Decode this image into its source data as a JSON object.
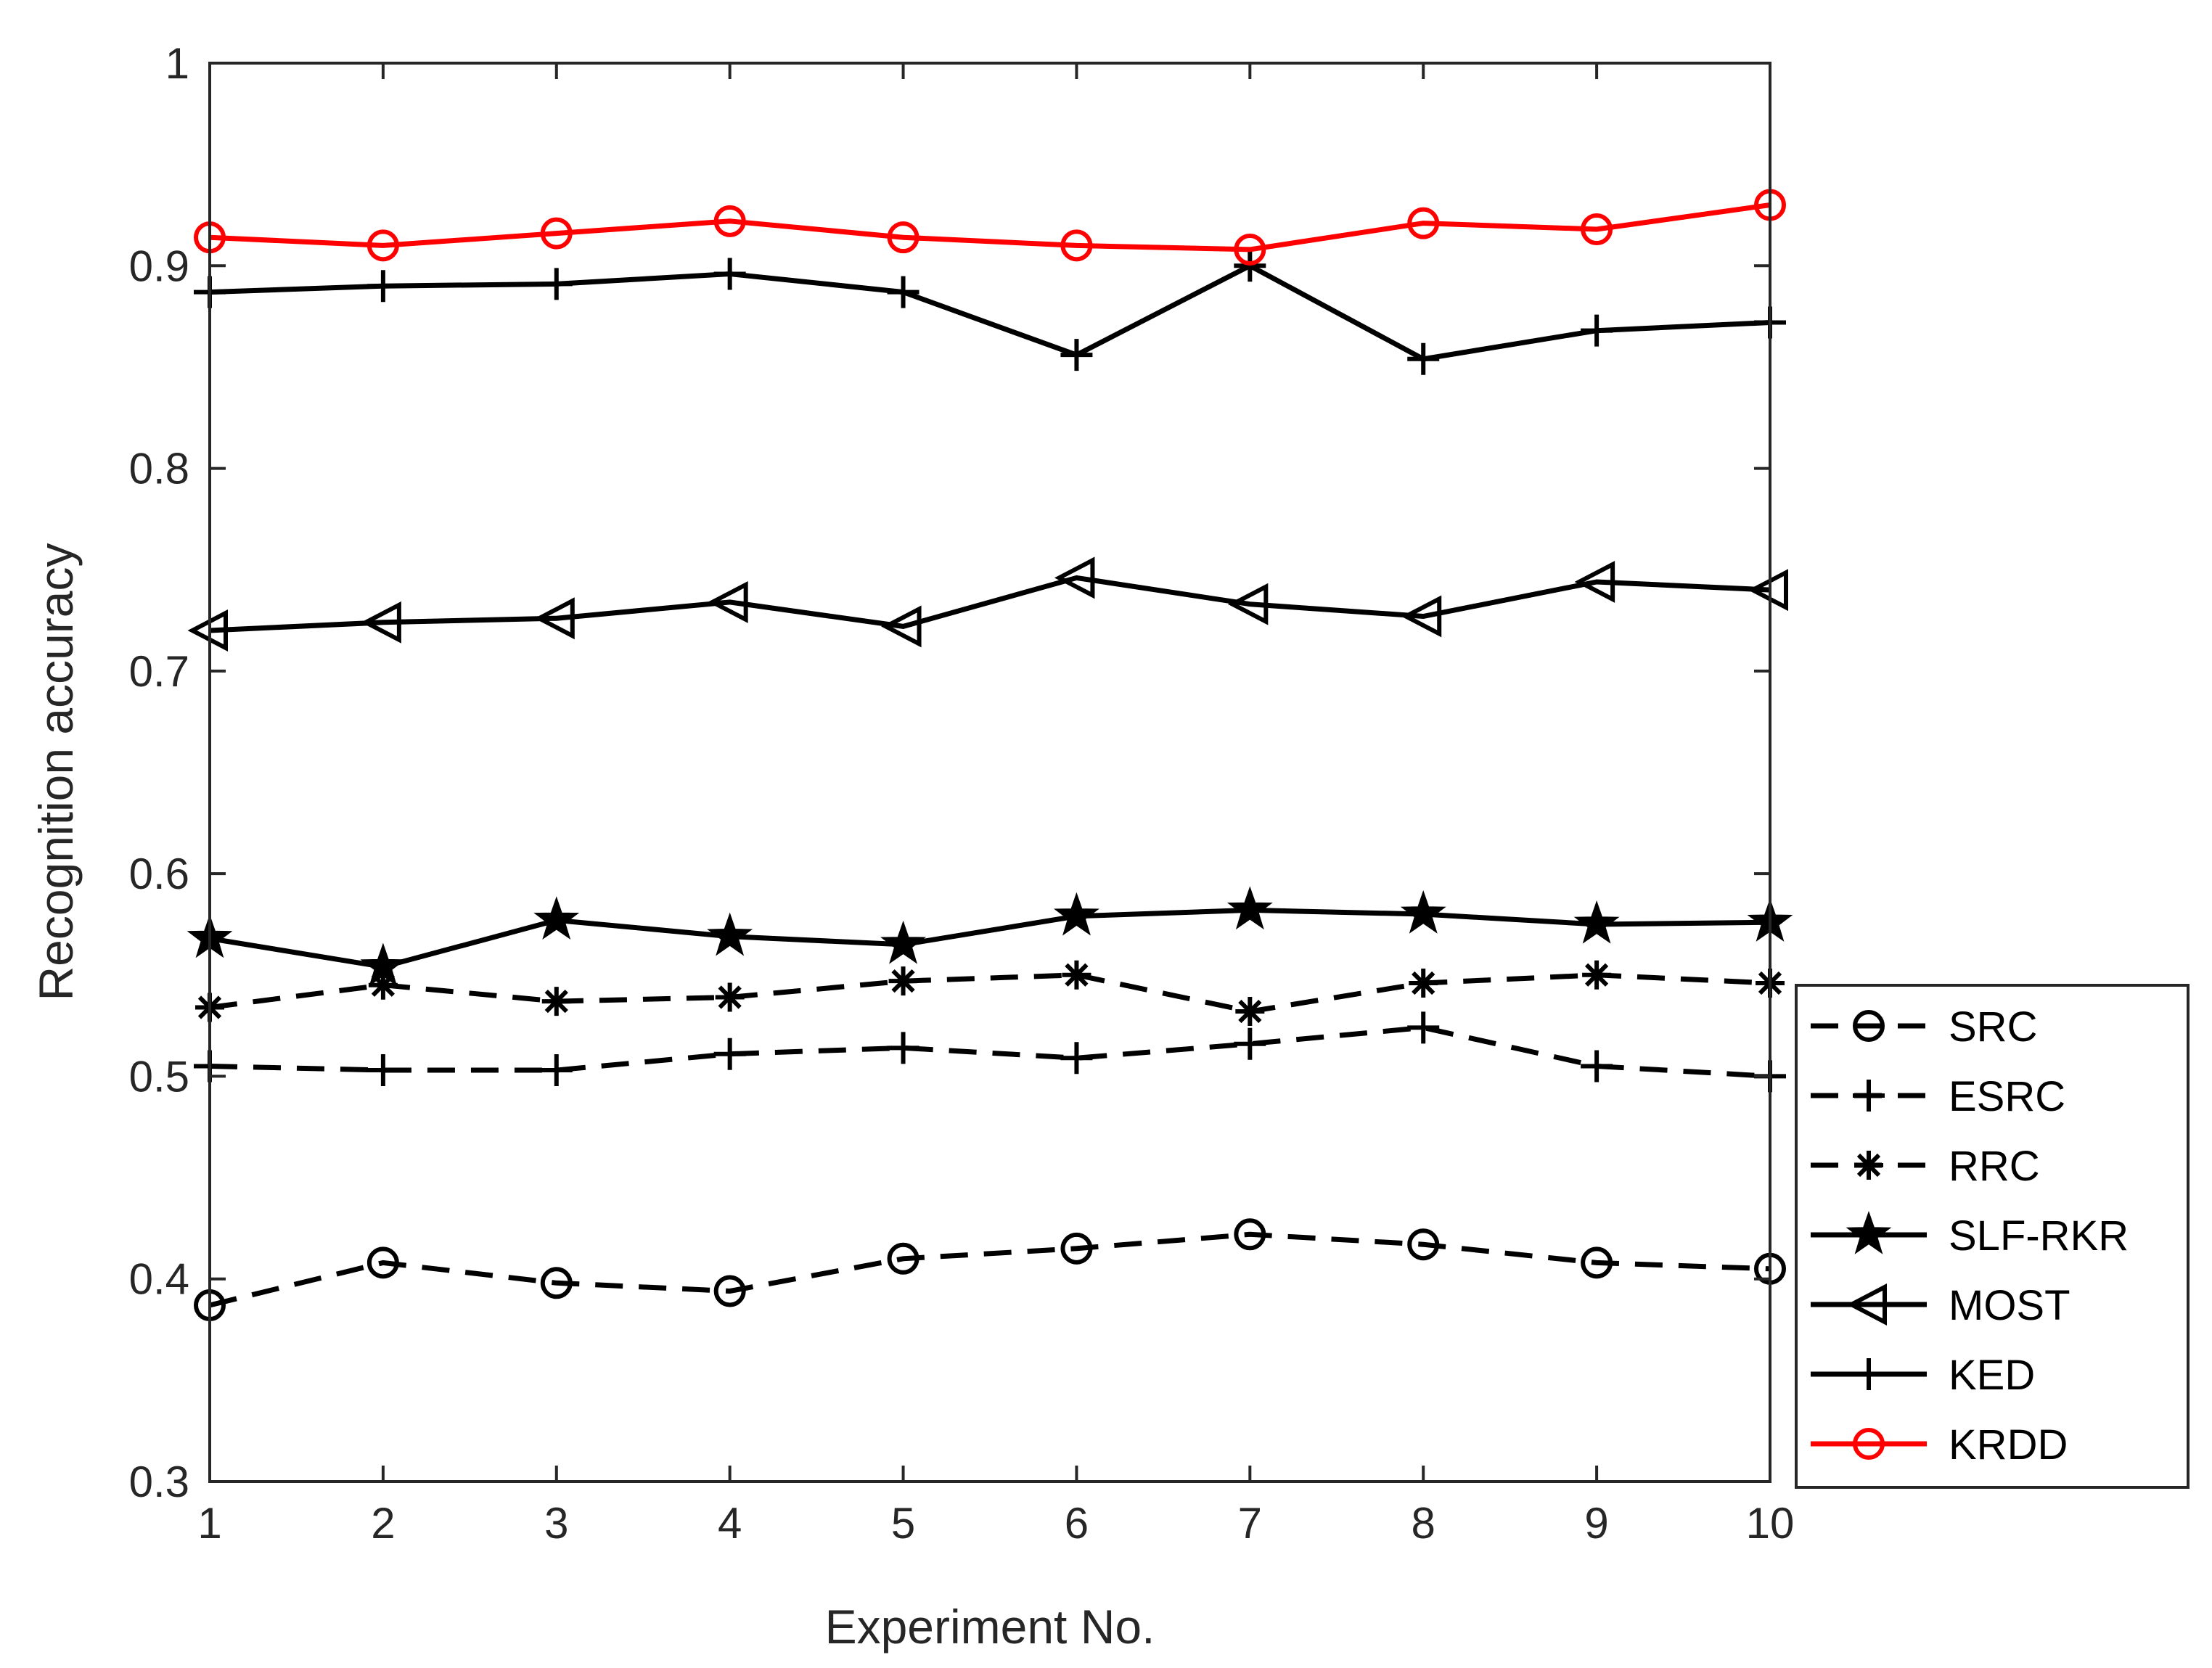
{
  "chart_data": {
    "type": "line",
    "title": "",
    "xlabel": "Experiment No.",
    "ylabel": "Recognition accuracy",
    "x": [
      1,
      2,
      3,
      4,
      5,
      6,
      7,
      8,
      9,
      10
    ],
    "xlim": [
      1,
      10
    ],
    "ylim": [
      0.3,
      1
    ],
    "xticks": [
      "1",
      "2",
      "3",
      "4",
      "5",
      "6",
      "7",
      "8",
      "9",
      "10"
    ],
    "yticks": [
      "0.3",
      "0.4",
      "0.5",
      "0.6",
      "0.7",
      "0.8",
      "0.9",
      "1"
    ],
    "yticks_values": [
      0.3,
      0.4,
      0.5,
      0.6,
      0.7,
      0.8,
      0.9,
      1.0
    ],
    "grid": false,
    "legend_position": "outside-right-bottom",
    "series": [
      {
        "name": "SRC",
        "color": "#000000",
        "dash": "dashed",
        "marker": "circle",
        "values": [
          0.387,
          0.408,
          0.398,
          0.394,
          0.41,
          0.415,
          0.422,
          0.417,
          0.408,
          0.405
        ]
      },
      {
        "name": "ESRC",
        "color": "#000000",
        "dash": "dashed",
        "marker": "plus",
        "values": [
          0.505,
          0.503,
          0.503,
          0.511,
          0.514,
          0.509,
          0.516,
          0.524,
          0.505,
          0.5
        ]
      },
      {
        "name": "RRC",
        "color": "#000000",
        "dash": "dashed",
        "marker": "asterisk",
        "values": [
          0.534,
          0.545,
          0.537,
          0.539,
          0.547,
          0.55,
          0.532,
          0.546,
          0.55,
          0.546
        ]
      },
      {
        "name": "SLF-RKR",
        "color": "#000000",
        "dash": "solid",
        "marker": "star",
        "values": [
          0.568,
          0.554,
          0.577,
          0.569,
          0.565,
          0.579,
          0.582,
          0.58,
          0.575,
          0.576
        ]
      },
      {
        "name": "MOST",
        "color": "#000000",
        "dash": "solid",
        "marker": "triangle-left",
        "values": [
          0.72,
          0.724,
          0.726,
          0.734,
          0.722,
          0.746,
          0.733,
          0.727,
          0.744,
          0.74
        ]
      },
      {
        "name": "KED",
        "color": "#000000",
        "dash": "solid",
        "marker": "plus",
        "values": [
          0.887,
          0.89,
          0.891,
          0.896,
          0.887,
          0.856,
          0.9,
          0.854,
          0.868,
          0.872
        ]
      },
      {
        "name": "KRDD",
        "color": "#ff0000",
        "dash": "solid",
        "marker": "circle",
        "values": [
          0.914,
          0.91,
          0.916,
          0.922,
          0.914,
          0.91,
          0.908,
          0.921,
          0.918,
          0.93
        ]
      }
    ]
  }
}
